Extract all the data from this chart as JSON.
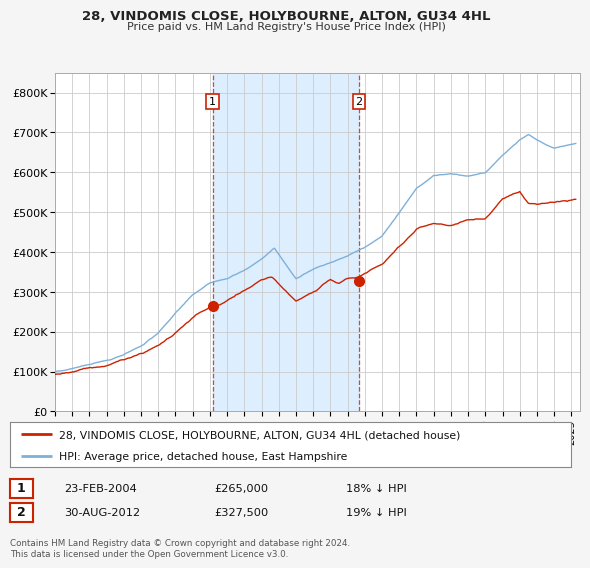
{
  "title": "28, VINDOMIS CLOSE, HOLYBOURNE, ALTON, GU34 4HL",
  "subtitle": "Price paid vs. HM Land Registry's House Price Index (HPI)",
  "legend_entry1": "28, VINDOMIS CLOSE, HOLYBOURNE, ALTON, GU34 4HL (detached house)",
  "legend_entry2": "HPI: Average price, detached house, East Hampshire",
  "annotation1_label": "1",
  "annotation1_date": "23-FEB-2004",
  "annotation1_price": "£265,000",
  "annotation1_hpi": "18% ↓ HPI",
  "annotation2_label": "2",
  "annotation2_date": "30-AUG-2012",
  "annotation2_price": "£327,500",
  "annotation2_hpi": "19% ↓ HPI",
  "footer": "Contains HM Land Registry data © Crown copyright and database right 2024.\nThis data is licensed under the Open Government Licence v3.0.",
  "sale1_x": 2004.15,
  "sale1_y": 265000,
  "sale2_x": 2012.67,
  "sale2_y": 327500,
  "red_color": "#cc2200",
  "blue_color": "#7fb0d8",
  "shade_color": "#ddeeff",
  "bg_color": "#ffffff",
  "fig_bg_color": "#f5f5f5",
  "grid_color": "#cccccc",
  "ylim_min": 0,
  "ylim_max": 850000,
  "xlim_min": 1995,
  "xlim_max": 2025.5,
  "yticks": [
    0,
    100000,
    200000,
    300000,
    400000,
    500000,
    600000,
    700000,
    800000
  ]
}
